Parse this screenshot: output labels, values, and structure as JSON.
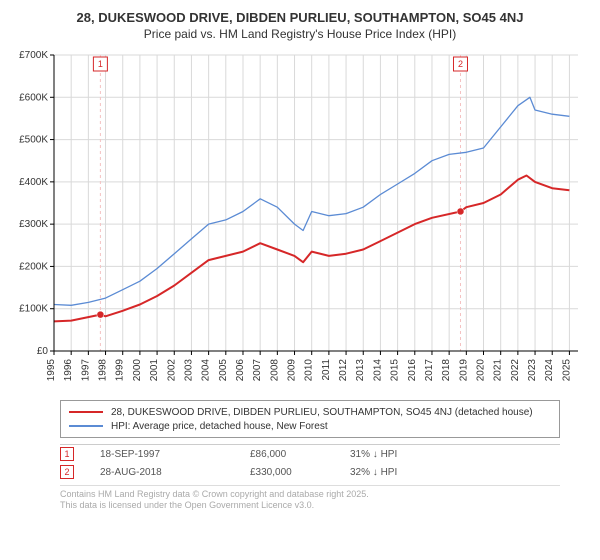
{
  "title": "28, DUKESWOOD DRIVE, DIBDEN PURLIEU, SOUTHAMPTON, SO45 4NJ",
  "subtitle": "Price paid vs. HM Land Registry's House Price Index (HPI)",
  "chart": {
    "type": "line",
    "xlim": [
      1995,
      2025.5
    ],
    "ylim": [
      0,
      700000
    ],
    "ytick_step": 100000,
    "ytick_prefix": "£",
    "ytick_suffix": "K",
    "xtick_step": 1,
    "xtick_years": [
      1995,
      1996,
      1997,
      1998,
      1999,
      2000,
      2001,
      2002,
      2003,
      2004,
      2005,
      2006,
      2007,
      2008,
      2009,
      2010,
      2011,
      2012,
      2013,
      2014,
      2015,
      2016,
      2017,
      2018,
      2019,
      2020,
      2021,
      2022,
      2023,
      2024,
      2025
    ],
    "plot_bg": "#ffffff",
    "axis_color": "#000000",
    "grid_color": "#d9d9d9",
    "axis_font_size": 10,
    "series": [
      {
        "name": "28, DUKESWOOD DRIVE, DIBDEN PURLIEU, SOUTHAMPTON, SO45 4NJ (detached house)",
        "color": "#d62728",
        "width": 2,
        "points": [
          [
            1995,
            70000
          ],
          [
            1996,
            72000
          ],
          [
            1997.7,
            86000
          ],
          [
            1998,
            82000
          ],
          [
            1999,
            95000
          ],
          [
            2000,
            110000
          ],
          [
            2001,
            130000
          ],
          [
            2002,
            155000
          ],
          [
            2003,
            185000
          ],
          [
            2004,
            215000
          ],
          [
            2005,
            225000
          ],
          [
            2006,
            235000
          ],
          [
            2007,
            255000
          ],
          [
            2008,
            240000
          ],
          [
            2009,
            225000
          ],
          [
            2009.5,
            210000
          ],
          [
            2010,
            235000
          ],
          [
            2011,
            225000
          ],
          [
            2012,
            230000
          ],
          [
            2013,
            240000
          ],
          [
            2014,
            260000
          ],
          [
            2015,
            280000
          ],
          [
            2016,
            300000
          ],
          [
            2017,
            315000
          ],
          [
            2018.66,
            330000
          ],
          [
            2019,
            340000
          ],
          [
            2020,
            350000
          ],
          [
            2021,
            370000
          ],
          [
            2022,
            405000
          ],
          [
            2022.5,
            415000
          ],
          [
            2023,
            400000
          ],
          [
            2024,
            385000
          ],
          [
            2025,
            380000
          ]
        ]
      },
      {
        "name": "HPI: Average price, detached house, New Forest",
        "color": "#5b8bd4",
        "width": 1.3,
        "points": [
          [
            1995,
            110000
          ],
          [
            1996,
            108000
          ],
          [
            1997,
            115000
          ],
          [
            1998,
            125000
          ],
          [
            1999,
            145000
          ],
          [
            2000,
            165000
          ],
          [
            2001,
            195000
          ],
          [
            2002,
            230000
          ],
          [
            2003,
            265000
          ],
          [
            2004,
            300000
          ],
          [
            2005,
            310000
          ],
          [
            2006,
            330000
          ],
          [
            2007,
            360000
          ],
          [
            2008,
            340000
          ],
          [
            2009,
            300000
          ],
          [
            2009.5,
            285000
          ],
          [
            2010,
            330000
          ],
          [
            2011,
            320000
          ],
          [
            2012,
            325000
          ],
          [
            2013,
            340000
          ],
          [
            2014,
            370000
          ],
          [
            2015,
            395000
          ],
          [
            2016,
            420000
          ],
          [
            2017,
            450000
          ],
          [
            2018,
            465000
          ],
          [
            2019,
            470000
          ],
          [
            2020,
            480000
          ],
          [
            2021,
            530000
          ],
          [
            2022,
            580000
          ],
          [
            2022.7,
            600000
          ],
          [
            2023,
            570000
          ],
          [
            2024,
            560000
          ],
          [
            2025,
            555000
          ]
        ]
      }
    ],
    "markers": [
      {
        "x": 1997.7,
        "y": 86000,
        "color": "#d62728"
      },
      {
        "x": 2018.66,
        "y": 330000,
        "color": "#d62728"
      }
    ],
    "annotations": [
      {
        "n": "1",
        "x": 1997.7,
        "color": "#d62728",
        "line_color": "#f4c2c2"
      },
      {
        "n": "2",
        "x": 2018.66,
        "color": "#d62728",
        "line_color": "#f4c2c2"
      }
    ]
  },
  "legend": {
    "items": [
      {
        "color": "#d62728",
        "width": 2,
        "label": "28, DUKESWOOD DRIVE, DIBDEN PURLIEU, SOUTHAMPTON, SO45 4NJ (detached house)"
      },
      {
        "color": "#5b8bd4",
        "width": 1.3,
        "label": "HPI: Average price, detached house, New Forest"
      }
    ]
  },
  "annotation_rows": [
    {
      "n": "1",
      "color": "#d62728",
      "date": "18-SEP-1997",
      "price": "£86,000",
      "pct": "31% ↓ HPI"
    },
    {
      "n": "2",
      "color": "#d62728",
      "date": "28-AUG-2018",
      "price": "£330,000",
      "pct": "32% ↓ HPI"
    }
  ],
  "license_line1": "Contains HM Land Registry data © Crown copyright and database right 2025.",
  "license_line2": "This data is licensed under the Open Government Licence v3.0."
}
